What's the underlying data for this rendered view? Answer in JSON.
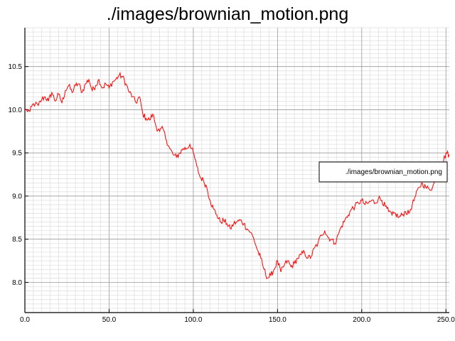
{
  "chart_data": {
    "type": "line",
    "title": "./images/brownian_motion.png",
    "xlabel": "",
    "ylabel": "",
    "xlim": [
      0,
      252
    ],
    "ylim": [
      7.65,
      10.95
    ],
    "x_ticks": [
      0,
      50,
      100,
      150,
      200,
      250
    ],
    "x_tick_labels": [
      "0.0",
      "50.0",
      "100.0",
      "150.0",
      "200.0",
      "250.0"
    ],
    "y_ticks": [
      8.0,
      8.5,
      9.0,
      9.5,
      10.0,
      10.5
    ],
    "y_tick_labels": [
      "8.0",
      "8.5",
      "9.0",
      "9.5",
      "10.0",
      "10.5"
    ],
    "grid": true,
    "legend_position": "right",
    "series": [
      {
        "name": "./images/brownian_motion.png",
        "color": "#ff0000",
        "anchors": [
          [
            0,
            10.0
          ],
          [
            3,
            9.98
          ],
          [
            5,
            10.07
          ],
          [
            8,
            10.05
          ],
          [
            10,
            10.12
          ],
          [
            12,
            10.15
          ],
          [
            14,
            10.1
          ],
          [
            16,
            10.2
          ],
          [
            18,
            10.1
          ],
          [
            20,
            10.18
          ],
          [
            22,
            10.08
          ],
          [
            24,
            10.22
          ],
          [
            26,
            10.28
          ],
          [
            28,
            10.2
          ],
          [
            30,
            10.28
          ],
          [
            32,
            10.3
          ],
          [
            34,
            10.2
          ],
          [
            36,
            10.3
          ],
          [
            38,
            10.35
          ],
          [
            40,
            10.22
          ],
          [
            42,
            10.28
          ],
          [
            44,
            10.35
          ],
          [
            46,
            10.25
          ],
          [
            48,
            10.3
          ],
          [
            50,
            10.25
          ],
          [
            52,
            10.32
          ],
          [
            54,
            10.35
          ],
          [
            56,
            10.4
          ],
          [
            58,
            10.38
          ],
          [
            60,
            10.3
          ],
          [
            62,
            10.2
          ],
          [
            64,
            10.15
          ],
          [
            66,
            10.08
          ],
          [
            68,
            10.15
          ],
          [
            70,
            9.95
          ],
          [
            72,
            9.9
          ],
          [
            74,
            9.88
          ],
          [
            76,
            9.95
          ],
          [
            78,
            9.8
          ],
          [
            80,
            9.75
          ],
          [
            82,
            9.78
          ],
          [
            84,
            9.65
          ],
          [
            86,
            9.55
          ],
          [
            88,
            9.48
          ],
          [
            90,
            9.45
          ],
          [
            92,
            9.5
          ],
          [
            94,
            9.55
          ],
          [
            96,
            9.55
          ],
          [
            98,
            9.6
          ],
          [
            100,
            9.5
          ],
          [
            102,
            9.35
          ],
          [
            104,
            9.22
          ],
          [
            106,
            9.18
          ],
          [
            108,
            9.1
          ],
          [
            110,
            8.95
          ],
          [
            112,
            8.85
          ],
          [
            114,
            8.78
          ],
          [
            116,
            8.7
          ],
          [
            118,
            8.72
          ],
          [
            120,
            8.68
          ],
          [
            122,
            8.62
          ],
          [
            124,
            8.68
          ],
          [
            126,
            8.7
          ],
          [
            128,
            8.72
          ],
          [
            130,
            8.68
          ],
          [
            132,
            8.62
          ],
          [
            134,
            8.58
          ],
          [
            136,
            8.5
          ],
          [
            138,
            8.38
          ],
          [
            140,
            8.28
          ],
          [
            142,
            8.15
          ],
          [
            144,
            8.05
          ],
          [
            146,
            8.08
          ],
          [
            148,
            8.15
          ],
          [
            150,
            8.25
          ],
          [
            152,
            8.12
          ],
          [
            154,
            8.2
          ],
          [
            156,
            8.25
          ],
          [
            158,
            8.18
          ],
          [
            160,
            8.22
          ],
          [
            162,
            8.28
          ],
          [
            164,
            8.32
          ],
          [
            166,
            8.35
          ],
          [
            168,
            8.28
          ],
          [
            170,
            8.3
          ],
          [
            172,
            8.4
          ],
          [
            174,
            8.45
          ],
          [
            176,
            8.55
          ],
          [
            178,
            8.6
          ],
          [
            180,
            8.52
          ],
          [
            182,
            8.5
          ],
          [
            184,
            8.45
          ],
          [
            186,
            8.55
          ],
          [
            188,
            8.65
          ],
          [
            190,
            8.72
          ],
          [
            192,
            8.78
          ],
          [
            194,
            8.85
          ],
          [
            196,
            8.88
          ],
          [
            198,
            8.92
          ],
          [
            200,
            8.95
          ],
          [
            202,
            8.9
          ],
          [
            204,
            8.92
          ],
          [
            206,
            8.95
          ],
          [
            208,
            8.92
          ],
          [
            210,
            8.98
          ],
          [
            212,
            8.95
          ],
          [
            214,
            8.88
          ],
          [
            216,
            8.82
          ],
          [
            218,
            8.78
          ],
          [
            220,
            8.8
          ],
          [
            222,
            8.75
          ],
          [
            224,
            8.78
          ],
          [
            226,
            8.82
          ],
          [
            228,
            8.8
          ],
          [
            230,
            8.9
          ],
          [
            232,
            9.0
          ],
          [
            234,
            9.1
          ],
          [
            236,
            9.15
          ],
          [
            238,
            9.1
          ],
          [
            240,
            9.08
          ],
          [
            242,
            9.1
          ],
          [
            244,
            9.2
          ],
          [
            246,
            9.3
          ],
          [
            248,
            9.38
          ],
          [
            250,
            9.5
          ],
          [
            252,
            9.48
          ]
        ]
      }
    ]
  }
}
